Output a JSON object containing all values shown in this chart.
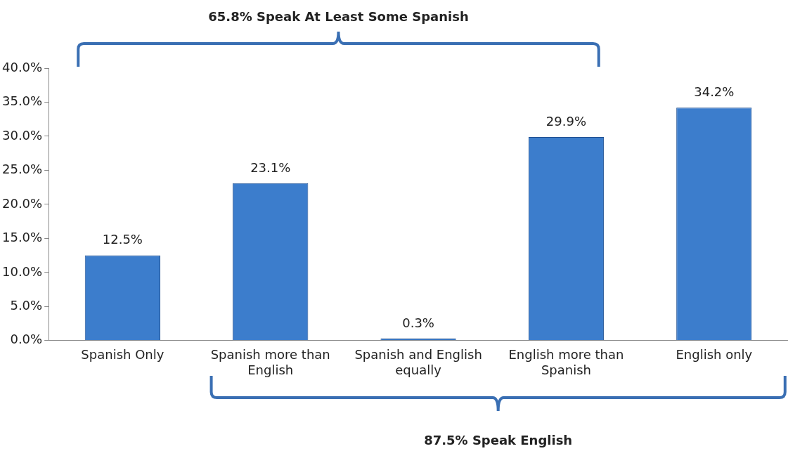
{
  "chart_data": {
    "type": "bar",
    "categories": [
      "Spanish Only",
      "Spanish more than English",
      "Spanish and English equally",
      "English more than Spanish",
      "English only"
    ],
    "values": [
      12.5,
      23.1,
      0.3,
      29.9,
      34.2
    ],
    "value_labels": [
      "12.5%",
      "23.1%",
      "0.3%",
      "29.9%",
      "34.2%"
    ],
    "color": "#3c7dcc",
    "ylim": [
      0,
      40
    ],
    "yticks": [
      {
        "value": 0,
        "label": "0.0%"
      },
      {
        "value": 5,
        "label": "5.0%"
      },
      {
        "value": 10,
        "label": "10.0%"
      },
      {
        "value": 15,
        "label": "15.0%"
      },
      {
        "value": 20,
        "label": "20.0%"
      },
      {
        "value": 25,
        "label": "25.0%"
      },
      {
        "value": 30,
        "label": "30.0%"
      },
      {
        "value": 35,
        "label": "35.0%"
      },
      {
        "value": 40,
        "label": "40.0%"
      }
    ],
    "grid": false,
    "legend": false,
    "annotations": [
      "65.8% Speak At Least Some Spanish",
      "87.5% Speak English"
    ]
  }
}
